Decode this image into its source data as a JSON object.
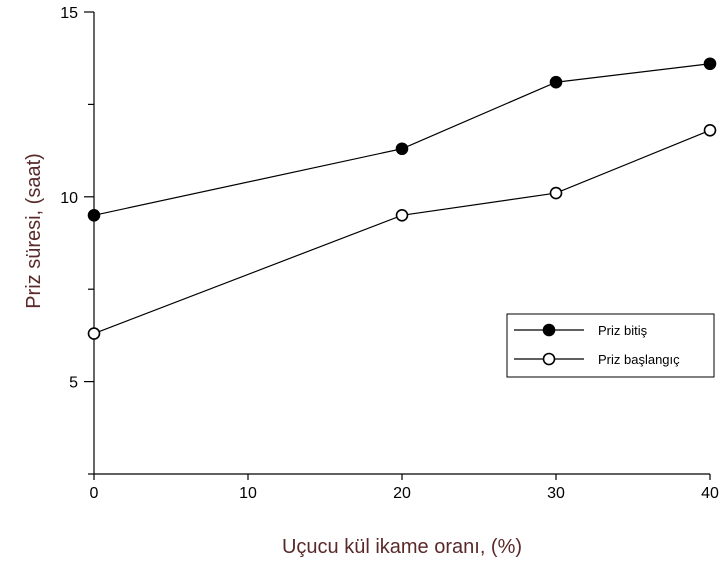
{
  "chart_data": {
    "type": "line",
    "title": "",
    "xlabel": "Uçucu kül ikame oranı, (%)",
    "ylabel": "Priz süresi, (saat)",
    "xlim": [
      0,
      40
    ],
    "ylim": [
      2.5,
      15
    ],
    "x_ticks": [
      0,
      10,
      20,
      30,
      40
    ],
    "y_ticks": [
      5,
      10,
      15
    ],
    "grid": false,
    "legend_position": "right",
    "colors": {
      "axis": "#000000",
      "axis_title": "#5a2a2a",
      "line": "#000000"
    },
    "series": [
      {
        "name": "Priz bitiş",
        "marker": "filled-circle",
        "x": [
          0,
          20,
          30,
          40
        ],
        "y": [
          9.5,
          11.3,
          13.1,
          13.6
        ]
      },
      {
        "name": "Priz başlangıç",
        "marker": "open-circle",
        "x": [
          0,
          20,
          30,
          40
        ],
        "y": [
          6.3,
          9.5,
          10.1,
          11.8
        ]
      }
    ]
  }
}
